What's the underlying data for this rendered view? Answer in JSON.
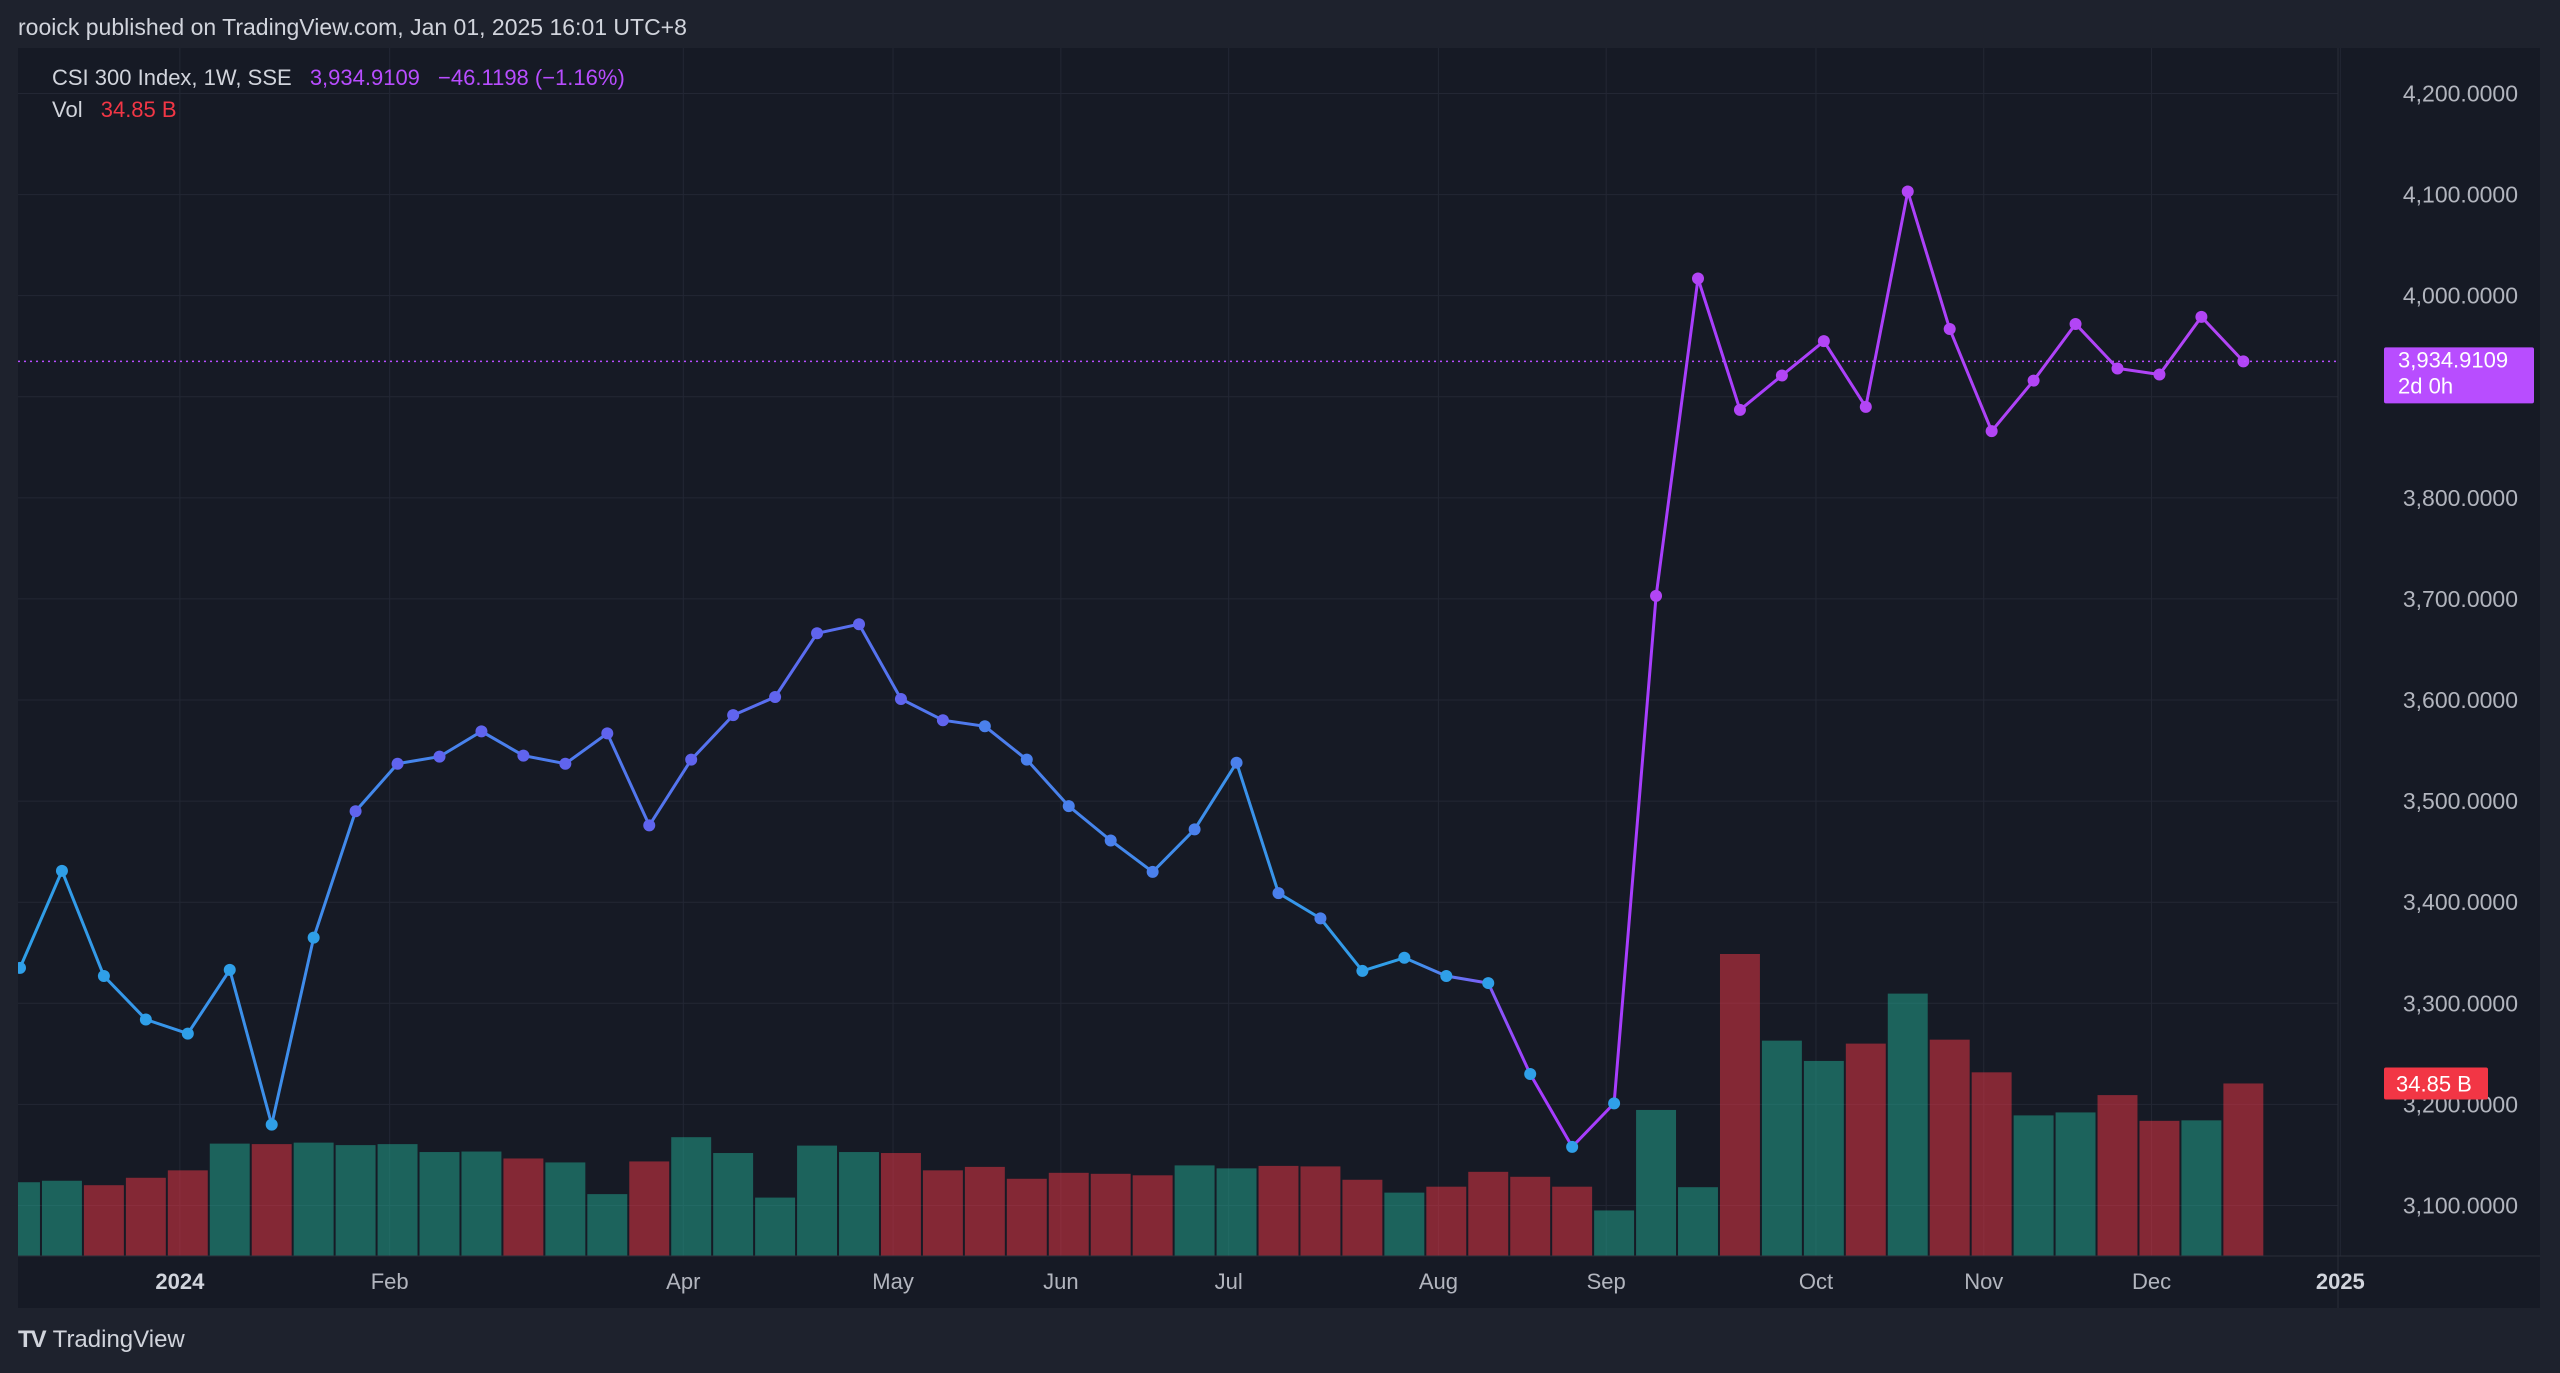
{
  "header": {
    "publish_text": "rooick published on TradingView.com, Jan 01, 2025 16:01 UTC+8"
  },
  "legend": {
    "symbol": "CSI 300 Index, 1W, SSE",
    "last": "3,934.9109",
    "change": "−46.1198 (−1.16%)",
    "vol_label": "Vol",
    "vol_value": "34.85 B"
  },
  "price_tag": {
    "value": "3,934.9109",
    "countdown": "2d 0h"
  },
  "vol_tag": {
    "value": "34.85 B"
  },
  "footer": {
    "brand": "TradingView"
  },
  "colors": {
    "up": "#22ab94",
    "down": "#f23645",
    "price_tag": "#b84dff",
    "vol_tag": "#f23645"
  },
  "chart_data": {
    "type": "line",
    "title": "CSI 300 Index, 1W, SSE",
    "x_labels": [
      "2024",
      "Feb",
      "Apr",
      "May",
      "Jun",
      "Jul",
      "Aug",
      "Sep",
      "Oct",
      "Nov",
      "Dec",
      "2025"
    ],
    "y_ticks": [
      "3,100.0000",
      "3,200.0000",
      "3,300.0000",
      "3,400.0000",
      "3,500.0000",
      "3,600.0000",
      "3,700.0000",
      "3,800.0000",
      "4,000.0000",
      "4,100.0000",
      "4,200.0000"
    ],
    "ylim": [
      3050,
      4245
    ],
    "series": [
      {
        "values": [
          3335,
          3431,
          3327,
          3284,
          3270,
          3333,
          3180,
          3365,
          3490,
          3537,
          3544,
          3569,
          3545,
          3537,
          3567,
          3476,
          3541,
          3585,
          3603,
          3666,
          3675,
          3601,
          3580,
          3574,
          3541,
          3495,
          3461,
          3430,
          3472,
          3538,
          3409,
          3384,
          3332,
          3345,
          3327,
          3320,
          3230,
          3158,
          3201,
          3703,
          4017,
          3887,
          3921,
          3955,
          3890,
          4103,
          3967,
          3866,
          3916,
          3972,
          3928,
          3922,
          3979,
          3935
        ]
      },
      {
        "name": "Vol",
        "values": [
          14.9,
          15.2,
          14.3,
          15.8,
          17.3,
          22.7,
          22.6,
          22.9,
          22.4,
          22.6,
          21.0,
          21.1,
          19.7,
          18.9,
          12.5,
          19.1,
          24.0,
          20.8,
          11.8,
          22.3,
          21.0,
          20.8,
          17.3,
          18.0,
          15.6,
          16.8,
          16.6,
          16.3,
          18.3,
          17.7,
          18.2,
          18.1,
          15.4,
          12.8,
          14.0,
          17.0,
          16.0,
          14.0,
          9.2,
          29.5,
          13.9,
          61.0,
          43.5,
          39.4,
          42.9,
          53.0,
          43.7,
          37.1,
          28.4,
          29.0,
          32.5,
          27.3,
          27.4,
          34.85
        ]
      }
    ],
    "volume_up": [
      true,
      true,
      false,
      false,
      false,
      true,
      false,
      true,
      true,
      true,
      true,
      true,
      false,
      true,
      true,
      false,
      true,
      true,
      true,
      true,
      true,
      false,
      false,
      false,
      false,
      false,
      false,
      false,
      true,
      true,
      false,
      false,
      false,
      true,
      false,
      false,
      false,
      false,
      true,
      true,
      true,
      false,
      true,
      true,
      false,
      true,
      false,
      false,
      true,
      true,
      false,
      false,
      true,
      false
    ]
  }
}
